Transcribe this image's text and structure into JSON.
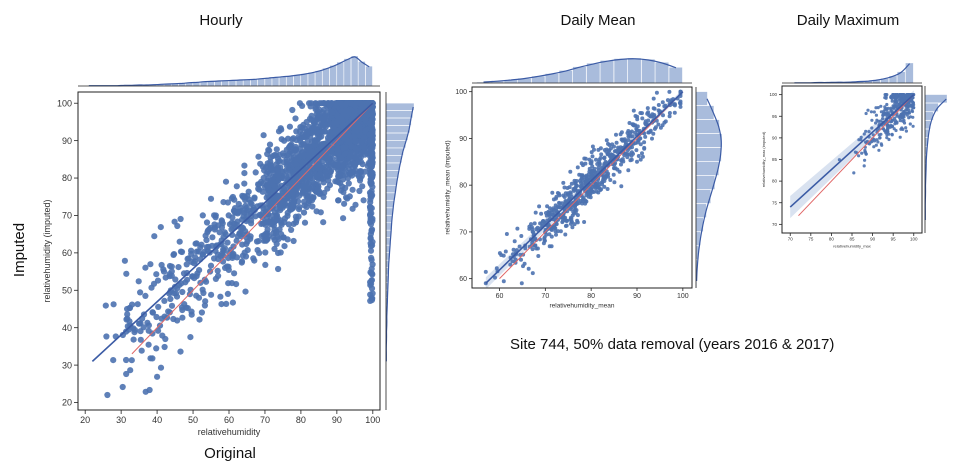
{
  "figure": {
    "row_label": "Imputed",
    "col_label": "Original",
    "caption": "Site 744, 50% data removal (years 2016 & 2017)"
  },
  "colors": {
    "points": "#4c72b0",
    "hist": "#a9bcdc",
    "fit": "#3b5ba5",
    "identity": "#e06666",
    "ci": "#c9d6ea",
    "frame": "#222222"
  },
  "chart_data": [
    {
      "id": "hourly",
      "type": "scatter",
      "title": "Hourly",
      "xlabel": "relativehumidity",
      "ylabel": "relativehumidity (imputed)",
      "xlim": [
        18,
        102
      ],
      "ylim": [
        18,
        103
      ],
      "xticks": [
        20,
        30,
        40,
        50,
        60,
        70,
        80,
        90,
        100
      ],
      "yticks": [
        20,
        30,
        40,
        50,
        60,
        70,
        80,
        90,
        100
      ],
      "fit_line": [
        [
          22,
          31
        ],
        [
          100,
          100
        ]
      ],
      "identity_line": [
        [
          33,
          33
        ],
        [
          100,
          100
        ]
      ],
      "x_hist_bins": [
        20,
        100,
        2
      ],
      "x_hist_counts": [
        1,
        1,
        1,
        1,
        1,
        2,
        2,
        3,
        3,
        4,
        5,
        6,
        7,
        8,
        10,
        11,
        13,
        14,
        15,
        16,
        17,
        18,
        19,
        20,
        22,
        24,
        26,
        28,
        30,
        33,
        36,
        40,
        45,
        52,
        60,
        70,
        80,
        88,
        72,
        58
      ],
      "y_hist_bins": [
        30,
        100,
        2
      ],
      "y_hist_counts": [
        1,
        1,
        1,
        2,
        2,
        3,
        3,
        4,
        5,
        6,
        7,
        8,
        9,
        10,
        12,
        14,
        16,
        18,
        20,
        22,
        25,
        28,
        32,
        36,
        40,
        45,
        50,
        56,
        62,
        70,
        78,
        85,
        90,
        95,
        100
      ]
    },
    {
      "id": "daily-mean",
      "type": "scatter",
      "title": "Daily Mean",
      "xlabel": "relativehumidity_mean",
      "ylabel": "relativehumidity_mean (imputed)",
      "xlim": [
        54,
        102
      ],
      "ylim": [
        58,
        101
      ],
      "xticks": [
        60,
        70,
        80,
        90,
        100
      ],
      "yticks": [
        60,
        70,
        80,
        90,
        100
      ],
      "fit_line": [
        [
          57,
          59
        ],
        [
          100,
          100
        ]
      ],
      "identity_line": [
        [
          60,
          60
        ],
        [
          100,
          100
        ]
      ],
      "x_hist_bins": [
        55,
        100,
        3
      ],
      "x_hist_counts": [
        3,
        6,
        10,
        15,
        22,
        30,
        40,
        52,
        63,
        72,
        78,
        80,
        76,
        66,
        50
      ],
      "y_hist_bins": [
        58,
        100,
        3
      ],
      "y_hist_counts": [
        2,
        4,
        8,
        14,
        22,
        32,
        45,
        58,
        70,
        78,
        80,
        72,
        55,
        35
      ]
    },
    {
      "id": "daily-max",
      "type": "scatter",
      "title": "Daily Maximum",
      "xlabel": "relativehumidity_max",
      "ylabel": "relativehumidity_max (imputed)",
      "xlim": [
        68,
        102
      ],
      "ylim": [
        68,
        102
      ],
      "xticks": [
        70,
        75,
        80,
        85,
        90,
        95,
        100
      ],
      "yticks": [
        70,
        75,
        80,
        85,
        90,
        95,
        100
      ],
      "fit_line": [
        [
          70,
          74
        ],
        [
          100,
          100
        ]
      ],
      "identity_line": [
        [
          72,
          72
        ],
        [
          100,
          100
        ]
      ],
      "x_hist_bins": [
        70,
        100,
        2
      ],
      "x_hist_counts": [
        1,
        1,
        1,
        2,
        2,
        3,
        3,
        4,
        6,
        8,
        12,
        18,
        28,
        45,
        80
      ],
      "y_hist_bins": [
        70,
        100,
        2
      ],
      "y_hist_counts": [
        1,
        1,
        1,
        2,
        2,
        3,
        4,
        5,
        7,
        10,
        14,
        20,
        30,
        48,
        80
      ]
    }
  ]
}
